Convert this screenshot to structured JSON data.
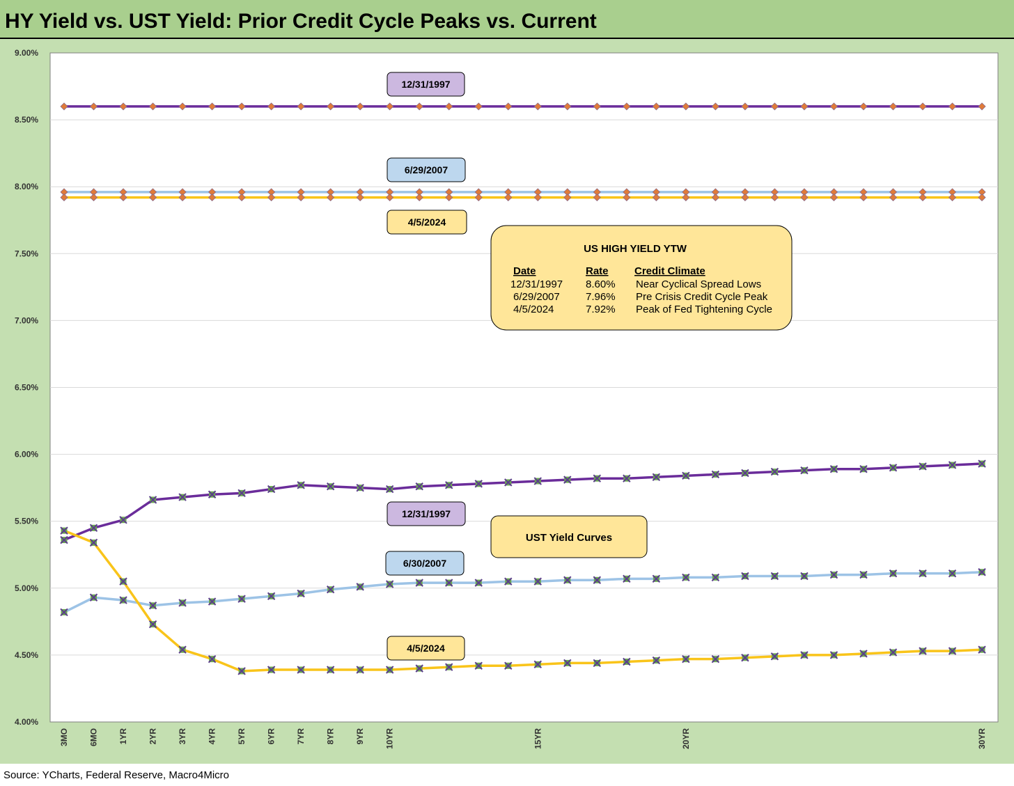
{
  "title": "HY Yield vs. UST Yield: Prior Credit Cycle Peaks vs. Current",
  "source": "Source: YCharts, Federal Reserve, Macro4Micro",
  "colors": {
    "title_bg": "#a9cf8e",
    "chart_bg": "#c4dfb1",
    "plot_bg": "#ffffff",
    "purple": "#6a2c9a",
    "blue": "#9dc3e6",
    "gold": "#f9c41a",
    "hy_marker": "#e07b39",
    "ust_marker": "#6aa84f",
    "tag_purple": "#ccb8e0",
    "tag_blue": "#bdd7ee",
    "tag_gold": "#ffe699",
    "box_fill": "#ffe699"
  },
  "tags": {
    "hy_1997": "12/31/1997",
    "hy_2007": "6/29/2007",
    "hy_2024": "4/5/2024",
    "ust_1997": "12/31/1997",
    "ust_2007": "6/30/2007",
    "ust_2024": "4/5/2024"
  },
  "ytw_box": {
    "title": "US HIGH YIELD YTW",
    "headers": [
      "Date",
      "Rate",
      "Credit Climate"
    ],
    "rows": [
      [
        "12/31/1997",
        "8.60%",
        "Near Cyclical Spread Lows"
      ],
      [
        "6/29/2007",
        "7.96%",
        "Pre Crisis Credit Cycle Peak"
      ],
      [
        "4/5/2024",
        "7.92%",
        "Peak of Fed Tightening Cycle"
      ]
    ]
  },
  "ust_box": {
    "title": "UST Yield Curves"
  },
  "chart_data": {
    "type": "line",
    "title": "HY Yield vs. UST Yield: Prior Credit Cycle Peaks vs. Current",
    "ylim": [
      4.0,
      9.0
    ],
    "yticks": [
      4.0,
      4.5,
      5.0,
      5.5,
      6.0,
      6.5,
      7.0,
      7.5,
      8.0,
      8.5,
      9.0
    ],
    "ytick_labels": [
      "4.00%",
      "4.50%",
      "5.00%",
      "5.50%",
      "6.00%",
      "6.50%",
      "7.00%",
      "7.50%",
      "8.00%",
      "8.50%",
      "9.00%"
    ],
    "x_tick_labels": [
      {
        "index": 0,
        "label": "3MO"
      },
      {
        "index": 1,
        "label": "6MO"
      },
      {
        "index": 2,
        "label": "1YR"
      },
      {
        "index": 3,
        "label": "2YR"
      },
      {
        "index": 4,
        "label": "3YR"
      },
      {
        "index": 5,
        "label": "4YR"
      },
      {
        "index": 6,
        "label": "5YR"
      },
      {
        "index": 7,
        "label": "6YR"
      },
      {
        "index": 8,
        "label": "7YR"
      },
      {
        "index": 9,
        "label": "8YR"
      },
      {
        "index": 10,
        "label": "9YR"
      },
      {
        "index": 11,
        "label": "10YR"
      },
      {
        "index": 16,
        "label": "15YR"
      },
      {
        "index": 21,
        "label": "20YR"
      },
      {
        "index": 31,
        "label": "30YR"
      }
    ],
    "grid": true,
    "series": [
      {
        "name": "12/31/1997",
        "kind": "hy",
        "color": "#6a2c9a",
        "values": [
          8.6,
          8.6,
          8.6,
          8.6,
          8.6,
          8.6,
          8.6,
          8.6,
          8.6,
          8.6,
          8.6,
          8.6,
          8.6,
          8.6,
          8.6,
          8.6,
          8.6,
          8.6,
          8.6,
          8.6,
          8.6,
          8.6,
          8.6,
          8.6,
          8.6,
          8.6,
          8.6,
          8.6,
          8.6,
          8.6,
          8.6,
          8.6
        ]
      },
      {
        "name": "6/29/2007",
        "kind": "hy",
        "color": "#9dc3e6",
        "values": [
          7.96,
          7.96,
          7.96,
          7.96,
          7.96,
          7.96,
          7.96,
          7.96,
          7.96,
          7.96,
          7.96,
          7.96,
          7.96,
          7.96,
          7.96,
          7.96,
          7.96,
          7.96,
          7.96,
          7.96,
          7.96,
          7.96,
          7.96,
          7.96,
          7.96,
          7.96,
          7.96,
          7.96,
          7.96,
          7.96,
          7.96,
          7.96
        ]
      },
      {
        "name": "4/5/2024",
        "kind": "hy",
        "color": "#f9c41a",
        "values": [
          7.92,
          7.92,
          7.92,
          7.92,
          7.92,
          7.92,
          7.92,
          7.92,
          7.92,
          7.92,
          7.92,
          7.92,
          7.92,
          7.92,
          7.92,
          7.92,
          7.92,
          7.92,
          7.92,
          7.92,
          7.92,
          7.92,
          7.92,
          7.92,
          7.92,
          7.92,
          7.92,
          7.92,
          7.92,
          7.92,
          7.92,
          7.92
        ]
      },
      {
        "name": "12/31/1997",
        "kind": "ust",
        "color": "#6a2c9a",
        "values": [
          5.36,
          5.45,
          5.51,
          5.66,
          5.68,
          5.7,
          5.71,
          5.74,
          5.77,
          5.76,
          5.75,
          5.74,
          5.76,
          5.77,
          5.78,
          5.79,
          5.8,
          5.81,
          5.82,
          5.82,
          5.83,
          5.84,
          5.85,
          5.86,
          5.87,
          5.88,
          5.89,
          5.89,
          5.9,
          5.91,
          5.92,
          5.93
        ]
      },
      {
        "name": "6/30/2007",
        "kind": "ust",
        "color": "#9dc3e6",
        "values": [
          4.82,
          4.93,
          4.91,
          4.87,
          4.89,
          4.9,
          4.92,
          4.94,
          4.96,
          4.99,
          5.01,
          5.03,
          5.04,
          5.04,
          5.04,
          5.05,
          5.05,
          5.06,
          5.06,
          5.07,
          5.07,
          5.08,
          5.08,
          5.09,
          5.09,
          5.09,
          5.1,
          5.1,
          5.11,
          5.11,
          5.11,
          5.12
        ]
      },
      {
        "name": "4/5/2024",
        "kind": "ust",
        "color": "#f9c41a",
        "values": [
          5.43,
          5.34,
          5.05,
          4.73,
          4.54,
          4.47,
          4.38,
          4.39,
          4.39,
          4.39,
          4.39,
          4.39,
          4.4,
          4.41,
          4.42,
          4.42,
          4.43,
          4.44,
          4.44,
          4.45,
          4.46,
          4.47,
          4.47,
          4.48,
          4.49,
          4.5,
          4.5,
          4.51,
          4.52,
          4.53,
          4.53,
          4.54
        ]
      }
    ]
  }
}
